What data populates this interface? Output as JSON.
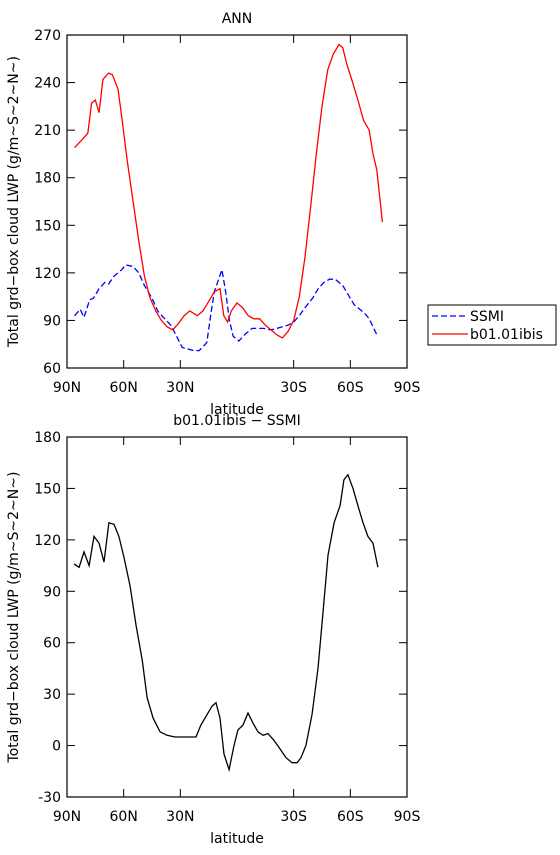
{
  "chart_data": [
    {
      "type": "line",
      "title": "ANN",
      "xlabel": "latitude",
      "ylabel": "Total grd−box cloud LWP (g/m~S~2~N~)",
      "xlim": [
        90,
        -90
      ],
      "xticks": [
        {
          "value": 90,
          "label": "90N"
        },
        {
          "value": 60,
          "label": "60N"
        },
        {
          "value": 30,
          "label": "30N"
        },
        {
          "value": -30,
          "label": "30S"
        },
        {
          "value": -60,
          "label": "60S"
        },
        {
          "value": -90,
          "label": "90S"
        }
      ],
      "ylim": [
        60,
        270
      ],
      "yticks": [
        60,
        90,
        120,
        150,
        180,
        210,
        240,
        270
      ],
      "legend": "outside-right",
      "series": [
        {
          "name": "SSMI",
          "color": "#0000ff",
          "dash": true,
          "x": [
            86,
            83,
            81,
            78,
            76,
            73,
            70,
            68,
            65,
            61,
            59,
            55,
            52,
            49,
            45,
            42,
            39,
            35,
            32,
            29,
            26,
            23,
            20,
            16,
            14,
            12,
            10,
            8,
            6,
            4,
            2,
            -1,
            -4,
            -8,
            -11,
            -14,
            -18,
            -21,
            -24,
            -27,
            -30,
            -33,
            -36,
            -40,
            -43,
            -46,
            -49,
            -52,
            -56,
            -59,
            -62,
            -65,
            -68,
            -70,
            -74
          ],
          "values": [
            93,
            97,
            92,
            103,
            104,
            110,
            114,
            113,
            118,
            122,
            125,
            124,
            120,
            112,
            104,
            96,
            92,
            87,
            80,
            73,
            72,
            71,
            71,
            76,
            93,
            108,
            115,
            122,
            108,
            90,
            80,
            77,
            81,
            85,
            85,
            85,
            84,
            85,
            86,
            87,
            89,
            93,
            98,
            104,
            110,
            114,
            116,
            116,
            112,
            106,
            100,
            97,
            94,
            91,
            81
          ]
        },
        {
          "name": "b01.01ibis",
          "color": "#ff0000",
          "dash": false,
          "x": [
            86,
            82,
            79,
            77,
            75,
            73,
            71,
            68,
            66,
            63,
            61,
            58,
            55,
            52,
            49,
            46,
            43,
            40,
            37,
            34,
            31,
            28,
            25,
            21,
            18,
            15,
            12,
            9,
            7,
            5,
            3,
            0,
            -3,
            -6,
            -9,
            -12,
            -15,
            -18,
            -21,
            -24,
            -27,
            -30,
            -33,
            -36,
            -39,
            -42,
            -45,
            -48,
            -51,
            -54,
            -56,
            -58,
            -61,
            -64,
            -67,
            -70,
            -72,
            -74,
            -77
          ],
          "values": [
            199,
            204,
            208,
            227,
            229,
            221,
            242,
            246,
            245,
            236,
            218,
            190,
            165,
            140,
            118,
            104,
            96,
            90,
            86,
            84,
            88,
            93,
            96,
            93,
            96,
            102,
            108,
            110,
            93,
            89,
            96,
            101,
            98,
            93,
            91,
            91,
            87,
            84,
            81,
            79,
            83,
            90,
            105,
            130,
            162,
            195,
            225,
            248,
            258,
            264,
            262,
            252,
            241,
            229,
            216,
            210,
            195,
            185,
            152
          ]
        }
      ]
    },
    {
      "type": "line",
      "title": "b01.01ibis − SSMI",
      "xlabel": "latitude",
      "ylabel": "Total grd−box cloud LWP (g/m~S~2~N~)",
      "xlim": [
        90,
        -90
      ],
      "xticks": [
        {
          "value": 90,
          "label": "90N"
        },
        {
          "value": 60,
          "label": "60N"
        },
        {
          "value": 30,
          "label": "30N"
        },
        {
          "value": -30,
          "label": "30S"
        },
        {
          "value": -60,
          "label": "60S"
        },
        {
          "value": -90,
          "label": "90S"
        }
      ],
      "ylim": [
        -30,
        180
      ],
      "yticks": [
        -30,
        0,
        30,
        60,
        90,
        120,
        150,
        180
      ],
      "series": [
        {
          "color": "#000000",
          "dash": false,
          "x": [
            86.3,
            83.6,
            81,
            78.3,
            75.7,
            73,
            70.4,
            67.8,
            65.1,
            62.5,
            59.9,
            56.6,
            53.4,
            50.2,
            47.6,
            44.4,
            40.7,
            37,
            32.8,
            28.6,
            24.9,
            21.7,
            19.1,
            15.9,
            13.2,
            11.1,
            9,
            6.9,
            4.2,
            1.6,
            -0.5,
            -3.2,
            -5.8,
            -8.5,
            -11.1,
            -13.8,
            -16.4,
            -19.6,
            -22.8,
            -25.9,
            -29.1,
            -31.8,
            -33.9,
            -36.5,
            -39.7,
            -42.9,
            -45.5,
            -48.2,
            -51.4,
            -54.6,
            -56.6,
            -58.7,
            -61.4,
            -64,
            -66.7,
            -69.3,
            -72,
            -74.6
          ],
          "values": [
            106,
            104,
            113,
            105,
            122,
            118,
            107,
            130,
            129,
            122,
            110,
            93,
            70,
            50,
            28,
            16,
            8,
            6,
            5,
            5,
            5,
            5,
            12,
            18,
            23,
            25,
            16,
            -5,
            -14,
            0,
            9,
            12,
            19,
            13,
            8,
            6,
            7,
            3,
            -2,
            -7,
            -10,
            -10,
            -7,
            0,
            18,
            45,
            77,
            111,
            130,
            140,
            155,
            158,
            150,
            140,
            130,
            122,
            118,
            104
          ]
        }
      ]
    }
  ]
}
